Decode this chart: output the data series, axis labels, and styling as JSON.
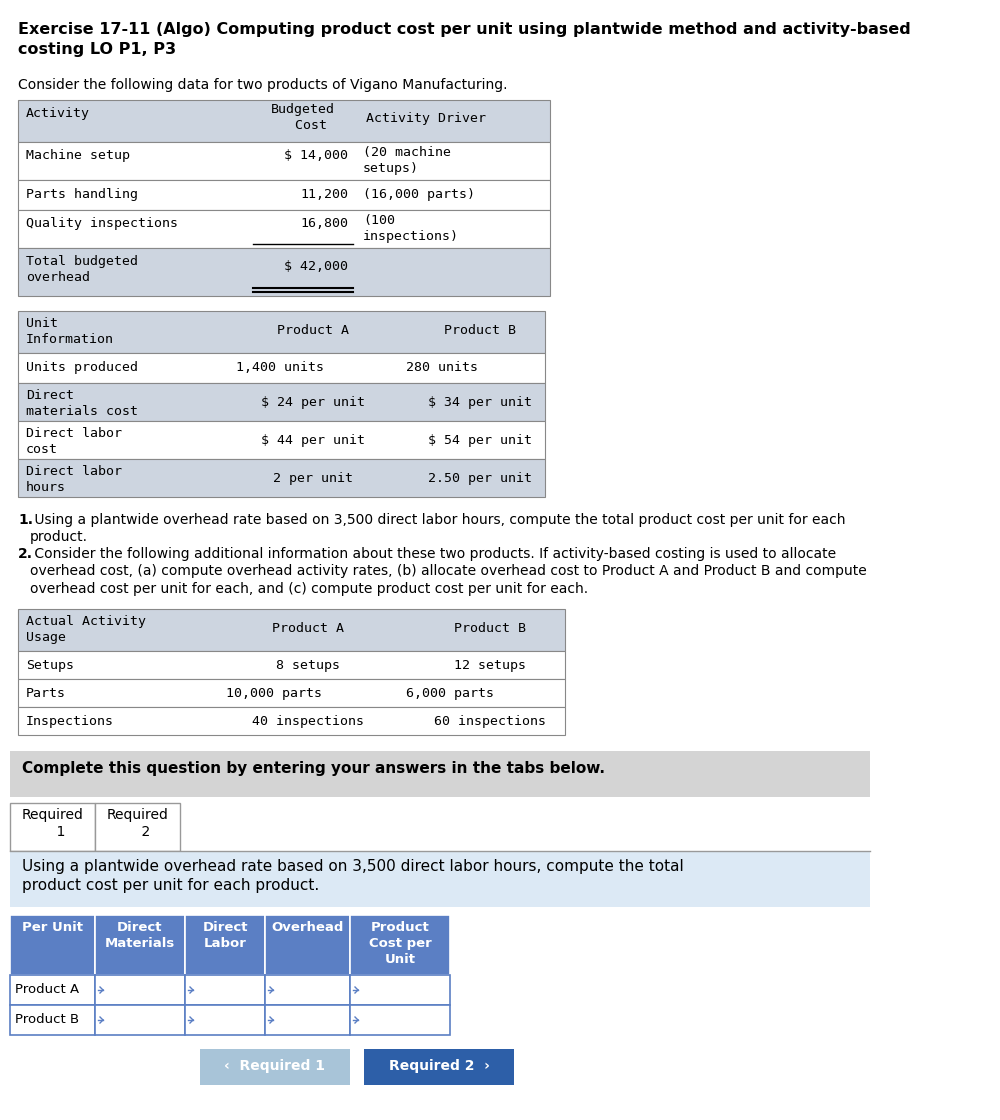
{
  "title_line1": "Exercise 17-11 (Algo) Computing product cost per unit using plantwide method and activity-based",
  "title_line2": "costing LO P1, P3",
  "intro_text": "Consider the following data for two products of Vigano Manufacturing.",
  "numbered_text1a": "1.",
  "numbered_text1b": " Using a plantwide overhead rate based on 3,500 direct labor hours, compute the total product cost per unit for each\nproduct.",
  "numbered_text2a": "2.",
  "numbered_text2b": " Consider the following additional information about these two products. If activity-based costing is used to allocate\noverhead cost, (a) compute overhead activity rates, (b) allocate overhead cost to Product A and Product B and compute\noverhead cost per unit for each, and (c) compute product cost per unit for each.",
  "complete_text": "Complete this question by entering your answers in the tabs below.",
  "instruction_text": "Using a plantwide overhead rate based on 3,500 direct labor hours, compute the total\nproduct cost per unit for each product.",
  "btn1_text": "‹  Required 1",
  "btn2_text": "Required 2  ›",
  "bg_color": "#ffffff",
  "table_header_bg": "#cdd5e0",
  "table_row_bg_alt": "#cdd5e0",
  "table_border": "#888888",
  "answer_header_bg": "#5b7fc4",
  "answer_header_color": "#ffffff",
  "complete_bg": "#d4d4d4",
  "instruction_bg": "#dce9f5",
  "tab_border": "#999999",
  "btn1_bg": "#a8c4d8",
  "btn2_bg": "#2d5fa8",
  "btn2_color": "#ffffff",
  "font_size_title": 11.5,
  "font_size_body": 10,
  "font_size_table": 9.5,
  "mono_font": "DejaVu Sans Mono",
  "sans_font": "DejaVu Sans"
}
